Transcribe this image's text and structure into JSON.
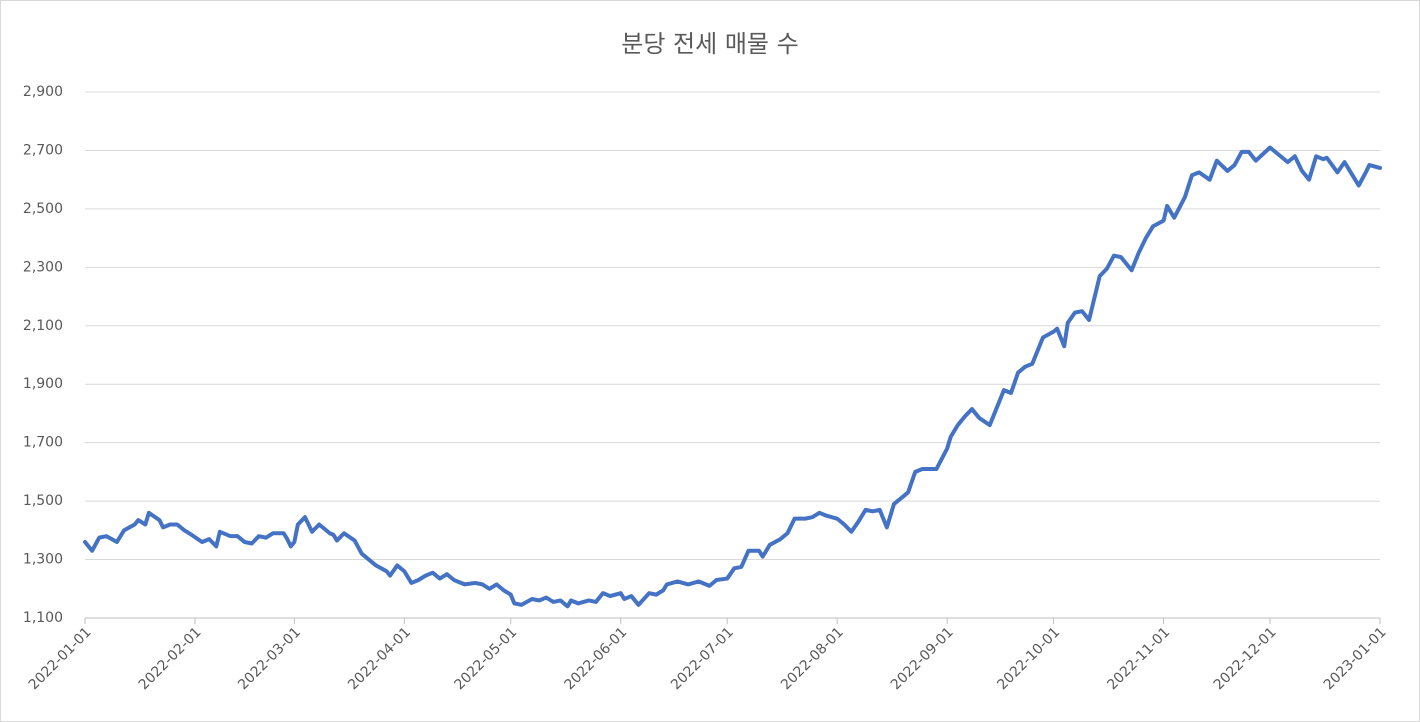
{
  "chart_data": {
    "type": "line",
    "title": "분당 전세 매물 수",
    "xlim": [
      "2022-01-01",
      "2023-01-01"
    ],
    "xticks": [
      "2022-01-01",
      "2022-02-01",
      "2022-03-01",
      "2022-04-01",
      "2022-05-01",
      "2022-06-01",
      "2022-07-01",
      "2022-08-01",
      "2022-09-01",
      "2022-10-01",
      "2022-11-01",
      "2022-12-01",
      "2023-01-01"
    ],
    "ylim": [
      1100,
      2900
    ],
    "yticks": [
      {
        "value": 1100,
        "label": "1,100"
      },
      {
        "value": 1300,
        "label": "1,300"
      },
      {
        "value": 1500,
        "label": "1,500"
      },
      {
        "value": 1700,
        "label": "1,700"
      },
      {
        "value": 1900,
        "label": "1,900"
      },
      {
        "value": 2100,
        "label": "2,100"
      },
      {
        "value": 2300,
        "label": "2,300"
      },
      {
        "value": 2500,
        "label": "2,500"
      },
      {
        "value": 2700,
        "label": "2,700"
      },
      {
        "value": 2900,
        "label": "2,900"
      }
    ],
    "grid": true,
    "x": [
      "2022-01-01",
      "2022-01-03",
      "2022-01-05",
      "2022-01-07",
      "2022-01-10",
      "2022-01-12",
      "2022-01-15",
      "2022-01-16",
      "2022-01-18",
      "2022-01-19",
      "2022-01-22",
      "2022-01-23",
      "2022-01-25",
      "2022-01-27",
      "2022-01-29",
      "2022-01-31",
      "2022-02-03",
      "2022-02-05",
      "2022-02-07",
      "2022-02-08",
      "2022-02-11",
      "2022-02-13",
      "2022-02-15",
      "2022-02-17",
      "2022-02-19",
      "2022-02-21",
      "2022-02-23",
      "2022-02-26",
      "2022-02-27",
      "2022-02-28",
      "2022-03-01",
      "2022-03-02",
      "2022-03-04",
      "2022-03-06",
      "2022-03-08",
      "2022-03-11",
      "2022-03-12",
      "2022-03-13",
      "2022-03-15",
      "2022-03-18",
      "2022-03-20",
      "2022-03-22",
      "2022-03-24",
      "2022-03-27",
      "2022-03-28",
      "2022-03-30",
      "2022-04-01",
      "2022-04-03",
      "2022-04-05",
      "2022-04-07",
      "2022-04-09",
      "2022-04-11",
      "2022-04-13",
      "2022-04-15",
      "2022-04-16",
      "2022-04-18",
      "2022-04-21",
      "2022-04-23",
      "2022-04-25",
      "2022-04-27",
      "2022-04-29",
      "2022-05-01",
      "2022-05-02",
      "2022-05-04",
      "2022-05-07",
      "2022-05-09",
      "2022-05-11",
      "2022-05-13",
      "2022-05-15",
      "2022-05-17",
      "2022-05-18",
      "2022-05-20",
      "2022-05-23",
      "2022-05-25",
      "2022-05-27",
      "2022-05-29",
      "2022-06-01",
      "2022-06-02",
      "2022-06-04",
      "2022-06-06",
      "2022-06-09",
      "2022-06-11",
      "2022-06-13",
      "2022-06-14",
      "2022-06-17",
      "2022-06-20",
      "2022-06-23",
      "2022-06-26",
      "2022-06-28",
      "2022-07-01",
      "2022-07-03",
      "2022-07-05",
      "2022-07-07",
      "2022-07-10",
      "2022-07-11",
      "2022-07-13",
      "2022-07-16",
      "2022-07-18",
      "2022-07-20",
      "2022-07-23",
      "2022-07-25",
      "2022-07-27",
      "2022-07-29",
      "2022-08-01",
      "2022-08-03",
      "2022-08-05",
      "2022-08-07",
      "2022-08-09",
      "2022-08-11",
      "2022-08-13",
      "2022-08-15",
      "2022-08-17",
      "2022-08-20",
      "2022-08-21",
      "2022-08-23",
      "2022-08-25",
      "2022-08-27",
      "2022-08-29",
      "2022-09-01",
      "2022-09-02",
      "2022-09-04",
      "2022-09-06",
      "2022-09-08",
      "2022-09-10",
      "2022-09-13",
      "2022-09-15",
      "2022-09-17",
      "2022-09-19",
      "2022-09-21",
      "2022-09-23",
      "2022-09-25",
      "2022-09-28",
      "2022-10-01",
      "2022-10-02",
      "2022-10-04",
      "2022-10-05",
      "2022-10-07",
      "2022-10-09",
      "2022-10-11",
      "2022-10-14",
      "2022-10-16",
      "2022-10-18",
      "2022-10-20",
      "2022-10-23",
      "2022-10-25",
      "2022-10-27",
      "2022-10-29",
      "2022-11-01",
      "2022-11-02",
      "2022-11-04",
      "2022-11-07",
      "2022-11-09",
      "2022-11-11",
      "2022-11-14",
      "2022-11-16",
      "2022-11-19",
      "2022-11-21",
      "2022-11-23",
      "2022-11-25",
      "2022-11-27",
      "2022-12-01",
      "2022-12-03",
      "2022-12-06",
      "2022-12-08",
      "2022-12-10",
      "2022-12-12",
      "2022-12-14",
      "2022-12-16",
      "2022-12-17",
      "2022-12-20",
      "2022-12-22",
      "2022-12-24",
      "2022-12-26",
      "2022-12-28",
      "2022-12-29",
      "2023-01-01"
    ],
    "series": [
      {
        "color": "#4472c4",
        "values": [
          1360,
          1330,
          1375,
          1380,
          1360,
          1400,
          1420,
          1435,
          1420,
          1460,
          1435,
          1410,
          1420,
          1420,
          1400,
          1385,
          1360,
          1370,
          1345,
          1395,
          1380,
          1380,
          1360,
          1355,
          1380,
          1375,
          1390,
          1390,
          1370,
          1345,
          1360,
          1420,
          1445,
          1395,
          1420,
          1390,
          1385,
          1365,
          1390,
          1365,
          1320,
          1300,
          1280,
          1260,
          1245,
          1280,
          1260,
          1220,
          1230,
          1245,
          1255,
          1235,
          1250,
          1230,
          1225,
          1215,
          1220,
          1215,
          1200,
          1215,
          1195,
          1180,
          1150,
          1145,
          1165,
          1160,
          1170,
          1155,
          1160,
          1140,
          1160,
          1150,
          1160,
          1155,
          1185,
          1175,
          1185,
          1165,
          1175,
          1145,
          1185,
          1180,
          1195,
          1215,
          1225,
          1215,
          1225,
          1210,
          1230,
          1235,
          1270,
          1275,
          1330,
          1330,
          1310,
          1350,
          1370,
          1390,
          1440,
          1440,
          1445,
          1460,
          1450,
          1440,
          1420,
          1395,
          1430,
          1470,
          1465,
          1470,
          1410,
          1490,
          1520,
          1530,
          1600,
          1610,
          1610,
          1610,
          1680,
          1720,
          1760,
          1790,
          1815,
          1785,
          1760,
          1820,
          1880,
          1870,
          1940,
          1960,
          1970,
          2060,
          2080,
          2090,
          2030,
          2110,
          2145,
          2150,
          2120,
          2270,
          2295,
          2340,
          2335,
          2290,
          2350,
          2400,
          2440,
          2460,
          2510,
          2470,
          2540,
          2615,
          2625,
          2600,
          2665,
          2630,
          2650,
          2695,
          2695,
          2665,
          2710,
          2690,
          2660,
          2680,
          2630,
          2600,
          2680,
          2670,
          2675,
          2625,
          2660,
          2620,
          2580,
          2625,
          2650,
          2640
        ]
      }
    ]
  }
}
